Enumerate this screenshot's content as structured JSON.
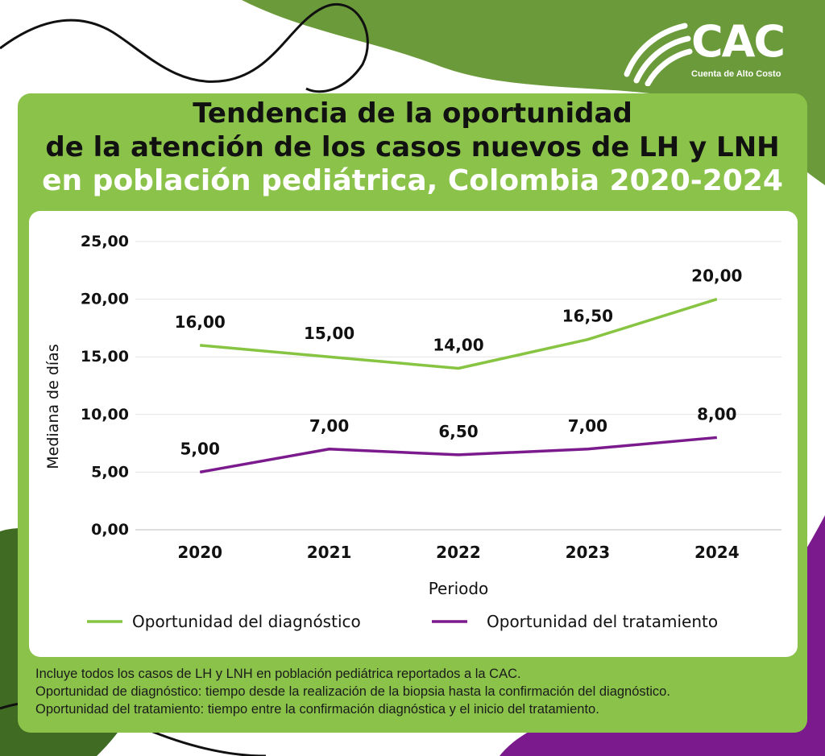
{
  "logo": {
    "text": "CAC",
    "subtitle": "Cuenta de Alto Costo"
  },
  "title": {
    "line1": "Tendencia de la oportunidad",
    "line2": "de la atención de los casos nuevos de LH y LNH",
    "line3": "en población pediátrica, Colombia 2020-2024"
  },
  "colors": {
    "panel_green": "#8bc34a",
    "dark_green": "#4a7a2c",
    "purple": "#7b1fa2",
    "series_diagnostico": "#86c441",
    "series_tratamiento": "#7b1a8c"
  },
  "chart_data": {
    "type": "line",
    "categories": [
      "2020",
      "2021",
      "2022",
      "2023",
      "2024"
    ],
    "series": [
      {
        "name": "Oportunidad del diagnóstico",
        "values": [
          16.0,
          15.0,
          14.0,
          16.5,
          20.0
        ],
        "labels": [
          "16,00",
          "15,00",
          "14,00",
          "16,50",
          "20,00"
        ],
        "color": "#86c441"
      },
      {
        "name": "Oportunidad del tratamiento",
        "values": [
          5.0,
          7.0,
          6.5,
          7.0,
          8.0
        ],
        "labels": [
          "5,00",
          "7,00",
          "6,50",
          "7,00",
          "8,00"
        ],
        "color": "#7b1a8c"
      }
    ],
    "ylim": [
      0,
      25
    ],
    "yticks": [
      0,
      5,
      10,
      15,
      20,
      25
    ],
    "ytick_labels": [
      "0,00",
      "5,00",
      "10,00",
      "15,00",
      "20,00",
      "25,00"
    ],
    "xlabel": "Periodo",
    "ylabel": "Mediana de días",
    "grid": true,
    "legend_position": "bottom"
  },
  "notes": [
    "Incluye todos los casos de LH y LNH en población pediátrica reportados a la CAC.",
    "Oportunidad de diagnóstico: tiempo desde la realización de la biopsia hasta la confirmación del diagnóstico.",
    "Oportunidad del tratamiento: tiempo entre la confirmación diagnóstica y el inicio del tratamiento."
  ]
}
